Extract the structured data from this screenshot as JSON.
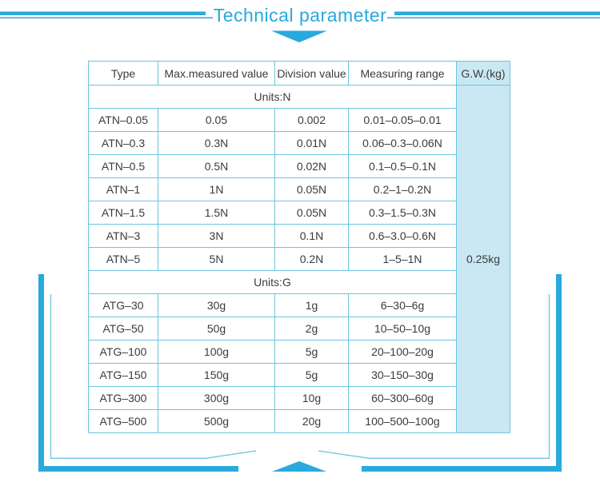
{
  "title": "Technical parameter",
  "colors": {
    "accent": "#29a9dc",
    "table_border": "#6cc5dd",
    "gw_column_bg": "#c9e8f4",
    "text": "#3b3b3b",
    "background": "#ffffff"
  },
  "icons": {
    "top": "down-arrow-icon",
    "bottom": "up-arrow-icon"
  },
  "table": {
    "headers": [
      "Type",
      "Max.measured value",
      "Division value",
      "Measuring range",
      "G.W.(kg)"
    ],
    "gw_value": "0.25kg",
    "sections": [
      {
        "label": "Units:N",
        "rows": [
          [
            "ATN–0.05",
            "0.05",
            "0.002",
            "0.01–0.05–0.01"
          ],
          [
            "ATN–0.3",
            "0.3N",
            "0.01N",
            "0.06–0.3–0.06N"
          ],
          [
            "ATN–0.5",
            "0.5N",
            "0.02N",
            "0.1–0.5–0.1N"
          ],
          [
            "ATN–1",
            "1N",
            "0.05N",
            "0.2–1–0.2N"
          ],
          [
            "ATN–1.5",
            "1.5N",
            "0.05N",
            "0.3–1.5–0.3N"
          ],
          [
            "ATN–3",
            "3N",
            "0.1N",
            "0.6–3.0–0.6N"
          ],
          [
            "ATN–5",
            "5N",
            "0.2N",
            "1–5–1N"
          ]
        ]
      },
      {
        "label": "Units:G",
        "rows": [
          [
            "ATG–30",
            "30g",
            "1g",
            "6–30–6g"
          ],
          [
            "ATG–50",
            "50g",
            "2g",
            "10–50–10g"
          ],
          [
            "ATG–100",
            "100g",
            "5g",
            "20–100–20g"
          ],
          [
            "ATG–150",
            "150g",
            "5g",
            "30–150–30g"
          ],
          [
            "ATG–300",
            "300g",
            "10g",
            "60–300–60g"
          ],
          [
            "ATG–500",
            "500g",
            "20g",
            "100–500–100g"
          ]
        ]
      }
    ]
  }
}
